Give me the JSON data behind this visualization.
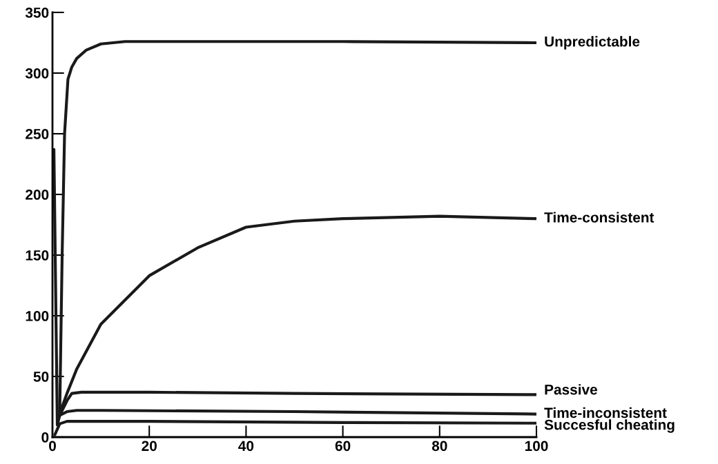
{
  "chart_data": {
    "type": "line",
    "xlim": [
      0,
      100
    ],
    "ylim": [
      0,
      350
    ],
    "xticks": [
      0,
      20,
      40,
      60,
      80,
      100
    ],
    "yticks": [
      0,
      50,
      100,
      150,
      200,
      250,
      300,
      350
    ],
    "grid": false,
    "legend": false,
    "marker": "none",
    "line_style": "solid",
    "series": [
      {
        "name": "Unpredictable",
        "color": "#1a1a1a",
        "x": [
          1.5,
          2,
          2.5,
          3.2,
          4,
          5,
          7,
          10,
          15,
          30,
          60,
          100
        ],
        "values": [
          20,
          150,
          250,
          295,
          305,
          312,
          319,
          324,
          326,
          326,
          326,
          325
        ]
      },
      {
        "name": "Time-consistent",
        "color": "#1a1a1a",
        "x": [
          0.3,
          1,
          1.5,
          2,
          3,
          5,
          10,
          20,
          30,
          40,
          50,
          60,
          80,
          100
        ],
        "values": [
          237,
          10,
          18,
          25,
          36,
          56,
          93,
          133,
          156,
          173,
          178,
          180,
          182,
          180
        ]
      },
      {
        "name": "Passive",
        "color": "#1a1a1a",
        "x": [
          1.5,
          3,
          4,
          6,
          8,
          20,
          50,
          100
        ],
        "values": [
          18,
          30,
          36,
          37,
          37,
          37,
          36,
          35
        ]
      },
      {
        "name": "Time-inconsistent",
        "color": "#1a1a1a",
        "x": [
          1.5,
          3,
          5,
          10,
          50,
          100
        ],
        "values": [
          18,
          21,
          22,
          22,
          21,
          19
        ]
      },
      {
        "name": "Succesful cheating",
        "color": "#1a1a1a",
        "x": [
          0.5,
          1.5,
          3,
          5,
          20,
          60,
          100
        ],
        "values": [
          2,
          11,
          13,
          13,
          13,
          12,
          11.5
        ]
      }
    ]
  }
}
